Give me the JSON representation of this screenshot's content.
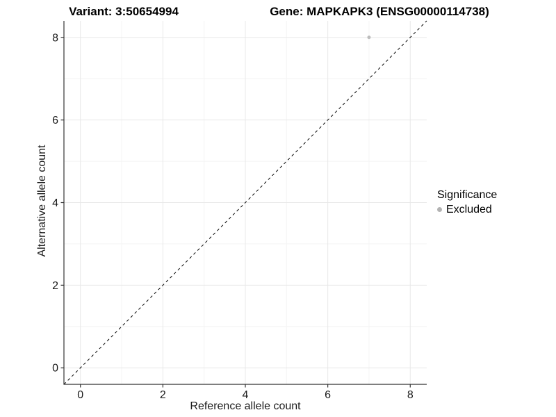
{
  "chart_data": {
    "type": "scatter",
    "title_left": "Variant: 3:50654994",
    "title_right": "Gene: MAPKAPK3 (ENSG00000114738)",
    "xlabel": "Reference allele count",
    "ylabel": "Alternative allele count",
    "xlim": [
      -0.4,
      8.4
    ],
    "ylim": [
      -0.4,
      8.4
    ],
    "x_major_ticks": [
      0,
      2,
      4,
      6,
      8
    ],
    "y_major_ticks": [
      0,
      2,
      4,
      6,
      8
    ],
    "x_minor_ticks": [
      1,
      3,
      5,
      7
    ],
    "y_minor_ticks": [
      1,
      3,
      5,
      7
    ],
    "grid": true,
    "reference_line": {
      "type": "identity",
      "slope": 1,
      "intercept": 0,
      "style": "dashed",
      "color": "#000000"
    },
    "series": [
      {
        "name": "Excluded",
        "color": "#bdbdbd",
        "points": [
          {
            "x": 7,
            "y": 8
          }
        ]
      }
    ],
    "legend": {
      "title": "Significance",
      "position": "right",
      "entries": [
        {
          "label": "Excluded",
          "color": "#b3b3b3"
        }
      ]
    }
  },
  "colors": {
    "background": "#ffffff",
    "axis_line": "#333333",
    "grid_major": "#e8e8e8",
    "grid_minor": "#f4f4f4",
    "tick": "#333333",
    "text": "#1a1a1a",
    "point": "#bdbdbd"
  }
}
